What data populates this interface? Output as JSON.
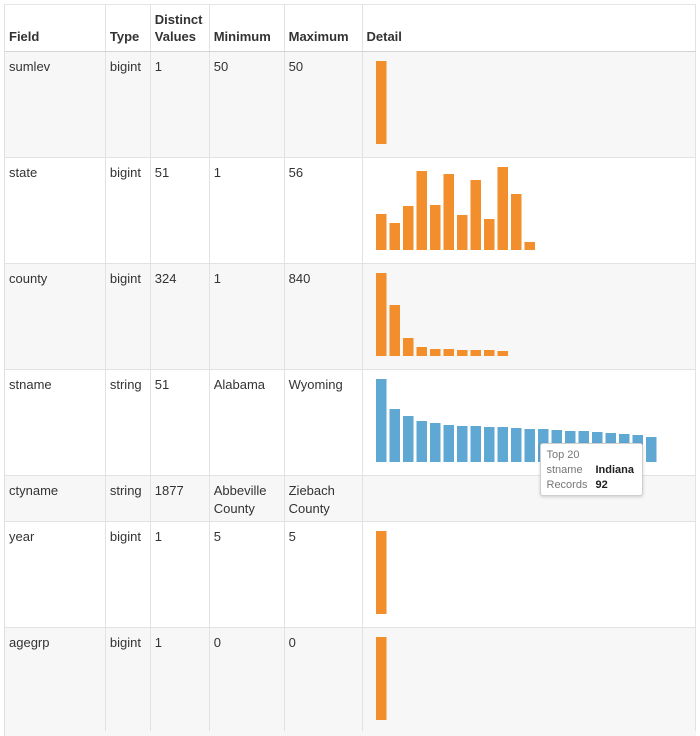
{
  "table": {
    "headers": [
      "Field",
      "Type",
      "Distinct Values",
      "Minimum",
      "Maximum",
      "Detail"
    ],
    "rows": [
      {
        "field": "sumlev",
        "type": "bigint",
        "distinct": "1",
        "min": "50",
        "max": "50",
        "chart": {
          "color": "#f28e2b",
          "values": [
            1
          ]
        }
      },
      {
        "field": "state",
        "type": "bigint",
        "distinct": "51",
        "min": "1",
        "max": "56",
        "chart": {
          "color": "#f28e2b",
          "values": [
            36,
            27,
            44,
            79,
            45,
            76,
            35,
            70,
            31,
            83,
            56,
            8
          ]
        }
      },
      {
        "field": "county",
        "type": "bigint",
        "distinct": "324",
        "min": "1",
        "max": "840",
        "chart": {
          "color": "#f28e2b",
          "values": [
            83,
            51,
            18,
            9,
            7,
            7,
            6,
            6,
            6,
            5
          ]
        }
      },
      {
        "field": "stname",
        "type": "string",
        "distinct": "51",
        "min": "Alabama",
        "max": "Wyoming",
        "chart": {
          "color": "#5fa8d3",
          "values": [
            83,
            53,
            46,
            41,
            39,
            37,
            36,
            36,
            35,
            35,
            34,
            33,
            33,
            32,
            31,
            31,
            30,
            29,
            28,
            27,
            25
          ]
        }
      },
      {
        "field": "ctyname",
        "type": "string",
        "distinct": "1877",
        "min": "Abbeville County",
        "max": "Ziebach County",
        "chart": null
      },
      {
        "field": "year",
        "type": "bigint",
        "distinct": "1",
        "min": "5",
        "max": "5",
        "chart": {
          "color": "#f28e2b",
          "values": [
            1
          ]
        }
      },
      {
        "field": "agegrp",
        "type": "bigint",
        "distinct": "1",
        "min": "0",
        "max": "0",
        "chart": {
          "color": "#f28e2b",
          "values": [
            1
          ]
        }
      }
    ]
  },
  "tooltip": {
    "title": "Top 20",
    "rows": [
      {
        "key": "stname",
        "value": "Indiana"
      },
      {
        "key": "Records",
        "value": "92"
      }
    ]
  }
}
